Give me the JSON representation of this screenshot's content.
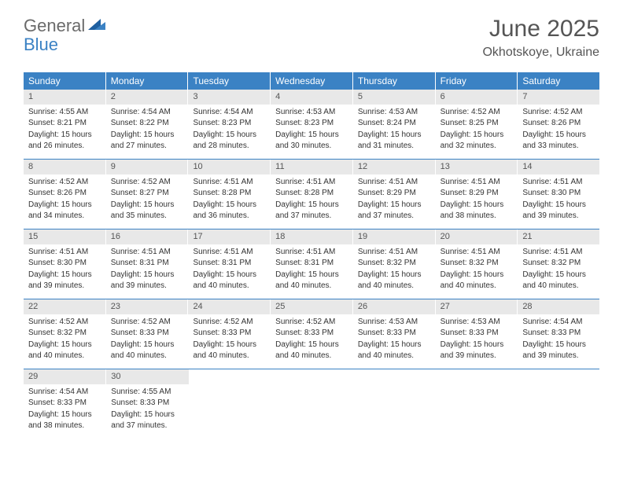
{
  "brand": {
    "part1": "General",
    "part2": "Blue"
  },
  "title": "June 2025",
  "location": "Okhotskoye, Ukraine",
  "colors": {
    "header_bg": "#3b82c4",
    "header_text": "#ffffff",
    "daynum_bg": "#e8e8e8",
    "text": "#333333",
    "title_text": "#555555",
    "row_border": "#3b82c4"
  },
  "fonts": {
    "title_size": 30,
    "location_size": 16,
    "dow_size": 12,
    "daynum_size": 11,
    "body_size": 10
  },
  "days_of_week": [
    "Sunday",
    "Monday",
    "Tuesday",
    "Wednesday",
    "Thursday",
    "Friday",
    "Saturday"
  ],
  "weeks": [
    [
      {
        "n": "1",
        "sr": "Sunrise: 4:55 AM",
        "ss": "Sunset: 8:21 PM",
        "d1": "Daylight: 15 hours",
        "d2": "and 26 minutes."
      },
      {
        "n": "2",
        "sr": "Sunrise: 4:54 AM",
        "ss": "Sunset: 8:22 PM",
        "d1": "Daylight: 15 hours",
        "d2": "and 27 minutes."
      },
      {
        "n": "3",
        "sr": "Sunrise: 4:54 AM",
        "ss": "Sunset: 8:23 PM",
        "d1": "Daylight: 15 hours",
        "d2": "and 28 minutes."
      },
      {
        "n": "4",
        "sr": "Sunrise: 4:53 AM",
        "ss": "Sunset: 8:23 PM",
        "d1": "Daylight: 15 hours",
        "d2": "and 30 minutes."
      },
      {
        "n": "5",
        "sr": "Sunrise: 4:53 AM",
        "ss": "Sunset: 8:24 PM",
        "d1": "Daylight: 15 hours",
        "d2": "and 31 minutes."
      },
      {
        "n": "6",
        "sr": "Sunrise: 4:52 AM",
        "ss": "Sunset: 8:25 PM",
        "d1": "Daylight: 15 hours",
        "d2": "and 32 minutes."
      },
      {
        "n": "7",
        "sr": "Sunrise: 4:52 AM",
        "ss": "Sunset: 8:26 PM",
        "d1": "Daylight: 15 hours",
        "d2": "and 33 minutes."
      }
    ],
    [
      {
        "n": "8",
        "sr": "Sunrise: 4:52 AM",
        "ss": "Sunset: 8:26 PM",
        "d1": "Daylight: 15 hours",
        "d2": "and 34 minutes."
      },
      {
        "n": "9",
        "sr": "Sunrise: 4:52 AM",
        "ss": "Sunset: 8:27 PM",
        "d1": "Daylight: 15 hours",
        "d2": "and 35 minutes."
      },
      {
        "n": "10",
        "sr": "Sunrise: 4:51 AM",
        "ss": "Sunset: 8:28 PM",
        "d1": "Daylight: 15 hours",
        "d2": "and 36 minutes."
      },
      {
        "n": "11",
        "sr": "Sunrise: 4:51 AM",
        "ss": "Sunset: 8:28 PM",
        "d1": "Daylight: 15 hours",
        "d2": "and 37 minutes."
      },
      {
        "n": "12",
        "sr": "Sunrise: 4:51 AM",
        "ss": "Sunset: 8:29 PM",
        "d1": "Daylight: 15 hours",
        "d2": "and 37 minutes."
      },
      {
        "n": "13",
        "sr": "Sunrise: 4:51 AM",
        "ss": "Sunset: 8:29 PM",
        "d1": "Daylight: 15 hours",
        "d2": "and 38 minutes."
      },
      {
        "n": "14",
        "sr": "Sunrise: 4:51 AM",
        "ss": "Sunset: 8:30 PM",
        "d1": "Daylight: 15 hours",
        "d2": "and 39 minutes."
      }
    ],
    [
      {
        "n": "15",
        "sr": "Sunrise: 4:51 AM",
        "ss": "Sunset: 8:30 PM",
        "d1": "Daylight: 15 hours",
        "d2": "and 39 minutes."
      },
      {
        "n": "16",
        "sr": "Sunrise: 4:51 AM",
        "ss": "Sunset: 8:31 PM",
        "d1": "Daylight: 15 hours",
        "d2": "and 39 minutes."
      },
      {
        "n": "17",
        "sr": "Sunrise: 4:51 AM",
        "ss": "Sunset: 8:31 PM",
        "d1": "Daylight: 15 hours",
        "d2": "and 40 minutes."
      },
      {
        "n": "18",
        "sr": "Sunrise: 4:51 AM",
        "ss": "Sunset: 8:31 PM",
        "d1": "Daylight: 15 hours",
        "d2": "and 40 minutes."
      },
      {
        "n": "19",
        "sr": "Sunrise: 4:51 AM",
        "ss": "Sunset: 8:32 PM",
        "d1": "Daylight: 15 hours",
        "d2": "and 40 minutes."
      },
      {
        "n": "20",
        "sr": "Sunrise: 4:51 AM",
        "ss": "Sunset: 8:32 PM",
        "d1": "Daylight: 15 hours",
        "d2": "and 40 minutes."
      },
      {
        "n": "21",
        "sr": "Sunrise: 4:51 AM",
        "ss": "Sunset: 8:32 PM",
        "d1": "Daylight: 15 hours",
        "d2": "and 40 minutes."
      }
    ],
    [
      {
        "n": "22",
        "sr": "Sunrise: 4:52 AM",
        "ss": "Sunset: 8:32 PM",
        "d1": "Daylight: 15 hours",
        "d2": "and 40 minutes."
      },
      {
        "n": "23",
        "sr": "Sunrise: 4:52 AM",
        "ss": "Sunset: 8:33 PM",
        "d1": "Daylight: 15 hours",
        "d2": "and 40 minutes."
      },
      {
        "n": "24",
        "sr": "Sunrise: 4:52 AM",
        "ss": "Sunset: 8:33 PM",
        "d1": "Daylight: 15 hours",
        "d2": "and 40 minutes."
      },
      {
        "n": "25",
        "sr": "Sunrise: 4:52 AM",
        "ss": "Sunset: 8:33 PM",
        "d1": "Daylight: 15 hours",
        "d2": "and 40 minutes."
      },
      {
        "n": "26",
        "sr": "Sunrise: 4:53 AM",
        "ss": "Sunset: 8:33 PM",
        "d1": "Daylight: 15 hours",
        "d2": "and 40 minutes."
      },
      {
        "n": "27",
        "sr": "Sunrise: 4:53 AM",
        "ss": "Sunset: 8:33 PM",
        "d1": "Daylight: 15 hours",
        "d2": "and 39 minutes."
      },
      {
        "n": "28",
        "sr": "Sunrise: 4:54 AM",
        "ss": "Sunset: 8:33 PM",
        "d1": "Daylight: 15 hours",
        "d2": "and 39 minutes."
      }
    ],
    [
      {
        "n": "29",
        "sr": "Sunrise: 4:54 AM",
        "ss": "Sunset: 8:33 PM",
        "d1": "Daylight: 15 hours",
        "d2": "and 38 minutes."
      },
      {
        "n": "30",
        "sr": "Sunrise: 4:55 AM",
        "ss": "Sunset: 8:33 PM",
        "d1": "Daylight: 15 hours",
        "d2": "and 37 minutes."
      },
      null,
      null,
      null,
      null,
      null
    ]
  ]
}
